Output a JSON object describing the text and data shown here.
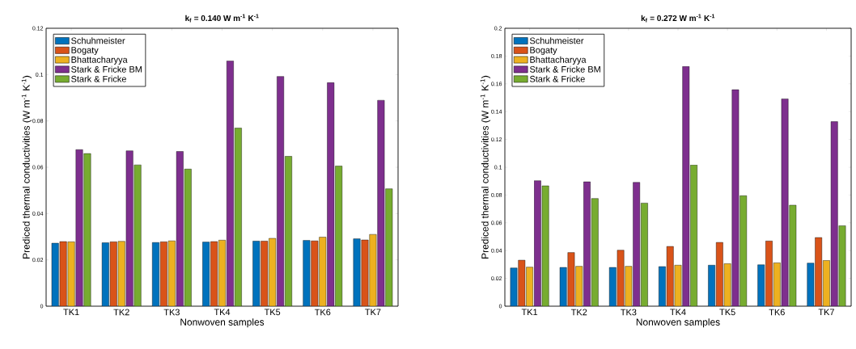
{
  "chart_data": [
    {
      "type": "bar",
      "title": "k$_{f}$ = 0.140 W m$^{-1}$ K$^{-1}$",
      "xlabel": "Nonwoven samples",
      "ylabel": "Prediced thermal conductivities (W m$^{-1}$ K$^{-1}$)",
      "categories": [
        "TK1",
        "TK2",
        "TK3",
        "TK4",
        "TK5",
        "TK6",
        "TK7"
      ],
      "series": [
        {
          "name": "Schuhmeister",
          "color": "#0072bd",
          "values": [
            0.0272,
            0.0274,
            0.0275,
            0.0277,
            0.0281,
            0.0284,
            0.0291
          ]
        },
        {
          "name": "Bogaty",
          "color": "#d95319",
          "values": [
            0.0279,
            0.0278,
            0.0278,
            0.0279,
            0.0281,
            0.0282,
            0.0286
          ]
        },
        {
          "name": "Bhattacharyya",
          "color": "#edb120",
          "values": [
            0.0278,
            0.028,
            0.0282,
            0.0285,
            0.0293,
            0.0298,
            0.031
          ]
        },
        {
          "name": "Stark & Fricke BM",
          "color": "#7e2f8e",
          "values": [
            0.0676,
            0.0671,
            0.0668,
            0.1059,
            0.0992,
            0.0965,
            0.0889
          ]
        },
        {
          "name": "Stark & Fricke",
          "color": "#77ac30",
          "values": [
            0.0659,
            0.061,
            0.0592,
            0.0769,
            0.0647,
            0.0605,
            0.0507
          ]
        }
      ],
      "ylim": [
        0,
        0.12
      ],
      "yticks": [
        0,
        0.02,
        0.04,
        0.06,
        0.08,
        0.1,
        0.12
      ],
      "legend": "top left",
      "grid": false
    },
    {
      "type": "bar",
      "title": "k$_{f}$ = 0.272 W m$^{-1}$ K$^{-1}$",
      "xlabel": "Nonwoven samples",
      "ylabel": "Prediced thermal conductivities (W m$^{-1}$ K$^{-1}$)",
      "categories": [
        "TK1",
        "TK2",
        "TK3",
        "TK4",
        "TK5",
        "TK6",
        "TK7"
      ],
      "series": [
        {
          "name": "Schuhmeister",
          "color": "#0072bd",
          "values": [
            0.0275,
            0.0279,
            0.0279,
            0.0285,
            0.0295,
            0.0298,
            0.031
          ]
        },
        {
          "name": "Bogaty",
          "color": "#d95319",
          "values": [
            0.0331,
            0.0386,
            0.0403,
            0.043,
            0.0459,
            0.0469,
            0.0494
          ]
        },
        {
          "name": "Bhattacharyya",
          "color": "#edb120",
          "values": [
            0.0281,
            0.0287,
            0.0287,
            0.0295,
            0.0306,
            0.0312,
            0.0329
          ]
        },
        {
          "name": "Stark & Fricke BM",
          "color": "#7e2f8e",
          "values": [
            0.0903,
            0.0895,
            0.0891,
            0.1725,
            0.1558,
            0.1492,
            0.1328
          ]
        },
        {
          "name": "Stark & Fricke",
          "color": "#77ac30",
          "values": [
            0.0866,
            0.0775,
            0.0742,
            0.1016,
            0.0795,
            0.0727,
            0.0579
          ]
        }
      ],
      "ylim": [
        0,
        0.2
      ],
      "yticks": [
        0,
        0.02,
        0.04,
        0.06,
        0.08,
        0.1,
        0.12,
        0.14,
        0.16,
        0.18,
        0.2
      ],
      "legend": "top left",
      "grid": false
    }
  ]
}
